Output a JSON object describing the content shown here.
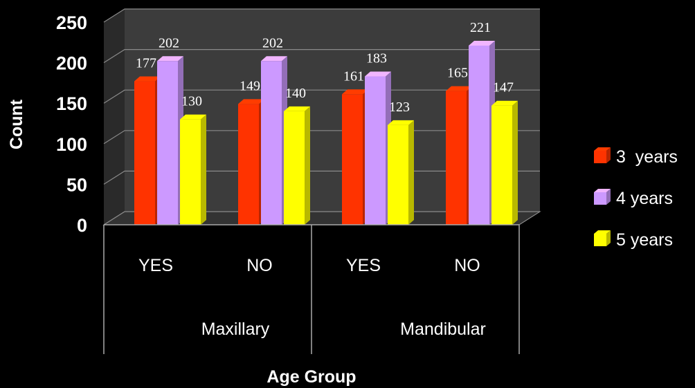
{
  "chart_data": {
    "type": "bar",
    "xlabel": "Age Group",
    "ylabel": "Count",
    "ylim": [
      0,
      250
    ],
    "yticks": [
      0,
      50,
      100,
      150,
      200,
      250
    ],
    "categories": [
      "YES",
      "NO",
      "YES",
      "NO"
    ],
    "groups": [
      {
        "label": "Maxillary",
        "categories": [
          "YES",
          "NO"
        ]
      },
      {
        "label": "Mandibular",
        "categories": [
          "YES",
          "NO"
        ]
      }
    ],
    "series": [
      {
        "name": "3  years",
        "values": [
          177,
          149,
          161,
          165
        ],
        "color": "#ff3300"
      },
      {
        "name": "4 years",
        "values": [
          202,
          202,
          183,
          221
        ],
        "color": "#cc99ff"
      },
      {
        "name": "5 years",
        "values": [
          130,
          140,
          123,
          147
        ],
        "color": "#ffff00"
      }
    ],
    "grid": true,
    "style": "3d",
    "background": "#000000",
    "legend_position": "right"
  }
}
